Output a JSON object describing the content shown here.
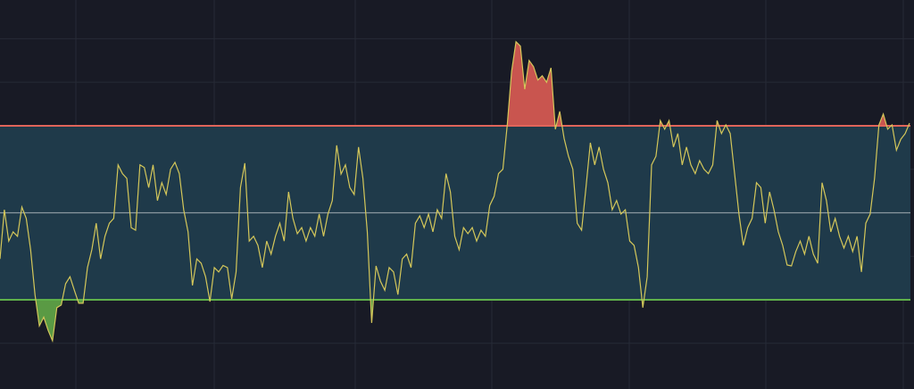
{
  "chart_data": {
    "type": "line",
    "title": "",
    "xlabel": "",
    "ylabel": "",
    "ylim": [
      9.5,
      98.9
    ],
    "grid": true,
    "grid_y": [
      20,
      40,
      60,
      80,
      90
    ],
    "legend": "none",
    "bands": {
      "upper": 70,
      "middle": 50,
      "lower": 30
    },
    "colors": {
      "background": "#181a25",
      "grid": "#262a36",
      "band_fill": "#1f3a4a",
      "line": "#d4c75a",
      "upper_line": "#e0645a",
      "middle_line": "#8a97a0",
      "lower_line": "#5fb04a",
      "overbought_fill": "#c9554f",
      "oversold_fill": "#5a9a44"
    },
    "values": [
      39.4,
      50.7,
      43.5,
      45.6,
      44.6,
      51.3,
      48.7,
      41.5,
      31.2,
      24,
      26,
      23,
      20.6,
      28.2,
      28.8,
      33.7,
      35.3,
      32.2,
      29.2,
      29.2,
      37.4,
      41.5,
      47.6,
      39.4,
      44.6,
      47.6,
      48.7,
      61,
      59,
      57.9,
      46.6,
      46,
      61,
      60.4,
      55.8,
      61,
      52.8,
      56.9,
      54.2,
      60,
      61.6,
      59,
      50.7,
      45.6,
      33.3,
      39.4,
      38.4,
      35.3,
      29.6,
      37.4,
      36.4,
      37.9,
      37.4,
      30.2,
      36.4,
      55.8,
      61.4,
      43.5,
      44.6,
      42.5,
      37.4,
      43.5,
      40.5,
      44.6,
      47.6,
      43.5,
      54.8,
      48.7,
      45.2,
      46.6,
      43.5,
      46.6,
      44.6,
      49.7,
      44.6,
      49.7,
      52.8,
      65.5,
      58.9,
      61,
      55.8,
      54.2,
      65.1,
      57.9,
      45.6,
      24.7,
      37.8,
      34.3,
      32.2,
      37.4,
      36.4,
      31.2,
      39.4,
      40.5,
      37.4,
      47.6,
      49.3,
      46.6,
      49.7,
      45.6,
      50.7,
      48.7,
      59,
      54.8,
      44.6,
      41.5,
      46.6,
      45.2,
      46.6,
      43.5,
      46,
      44.6,
      51.7,
      53.8,
      59,
      60,
      70.2,
      82.5,
      89.3,
      88.3,
      78.4,
      85,
      83.6,
      80.5,
      81.5,
      80,
      83.3,
      69.2,
      73.3,
      67.1,
      63,
      60,
      47.6,
      46,
      55.8,
      66.1,
      61,
      65.1,
      60,
      56.9,
      50.7,
      52.8,
      49.7,
      50.7,
      43.5,
      42.5,
      37.4,
      28.2,
      35.3,
      61,
      63,
      71.2,
      69.2,
      71.2,
      65.1,
      68.2,
      61,
      65.1,
      61,
      59,
      62,
      60,
      59,
      61,
      71.2,
      68.2,
      70.2,
      68.2,
      59,
      49.7,
      42.5,
      46.6,
      48.7,
      56.9,
      55.8,
      47.6,
      54.8,
      50.7,
      45.6,
      42.5,
      38,
      37.8,
      41.1,
      43.5,
      40.5,
      44.6,
      40.5,
      38.4,
      56.9,
      52.8,
      45.6,
      48.7,
      44.6,
      41.9,
      44.6,
      41.1,
      44.6,
      36.4,
      47.6,
      49.7,
      57.9,
      70.2,
      72.7,
      69.2,
      70.2,
      64.4,
      66.9,
      68.2,
      70.6
    ]
  }
}
